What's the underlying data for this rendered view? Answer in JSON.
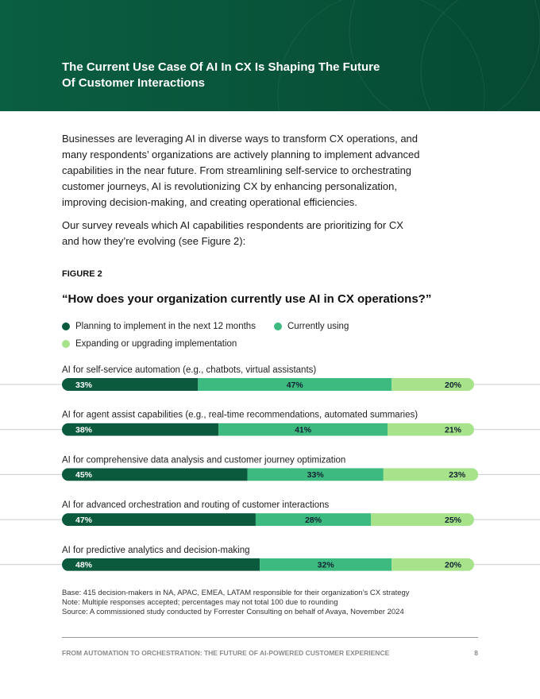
{
  "header": {
    "title_lines": [
      "The Current Use Case Of AI In CX Is Shaping The Future",
      "Of Customer Interactions"
    ]
  },
  "body": {
    "paragraphs": [
      "Businesses are leveraging AI in diverse ways to transform CX operations, and many respondents’ organizations are actively planning to implement advanced capabilities in the near future. From streamlining self-service to orchestrating customer journeys, AI is revolutionizing CX by enhancing personalization, improving decision-making, and creating operational efficiencies.",
      "Our survey reveals which AI capabilities respondents are prioritizing for CX and how they’re evolving (see Figure 2):"
    ]
  },
  "figure": {
    "label": "FIGURE 2",
    "notes": [
      "Base: 415 decision-makers in NA, APAC, EMEA, LATAM responsible for their organization’s CX strategy",
      "Note: Multiple responses accepted; percentages may not total 100 due to rounding",
      "Source: A commissioned study conducted by Forrester Consulting on behalf of Avaya, November 2024"
    ]
  },
  "chart_data": {
    "type": "stacked-bar-horizontal",
    "title": "“How does your organization currently use AI in CX operations?”",
    "categories": [
      "AI for self-service automation (e.g., chatbots, virtual assistants)",
      "AI for agent assist capabilities (e.g., real-time recommendations, automated summaries)",
      "AI for comprehensive data analysis and customer journey optimization",
      "AI for advanced orchestration and routing of customer interactions",
      "AI for predictive analytics and decision-making"
    ],
    "series": [
      {
        "name": "Planning to implement in the next 12 months",
        "color": "#0b5a3e",
        "values": [
          33,
          38,
          45,
          47,
          48
        ],
        "value_labels": [
          "33%",
          "38%",
          "45%",
          "47%",
          "48%"
        ]
      },
      {
        "name": "Currently using",
        "color": "#3dba7f",
        "values": [
          47,
          41,
          33,
          28,
          32
        ],
        "value_labels": [
          "47%",
          "41%",
          "33%",
          "28%",
          "32%"
        ]
      },
      {
        "name": "Expanding or upgrading implementation",
        "color": "#a6e38a",
        "values": [
          20,
          21,
          23,
          25,
          20
        ],
        "value_labels": [
          "20%",
          "21%",
          "23%",
          "25%",
          "20%"
        ]
      }
    ]
  },
  "footer": {
    "text": "FROM AUTOMATION TO ORCHESTRATION: THE FUTURE OF AI-POWERED CUSTOMER EXPERIENCE",
    "page": "8"
  }
}
